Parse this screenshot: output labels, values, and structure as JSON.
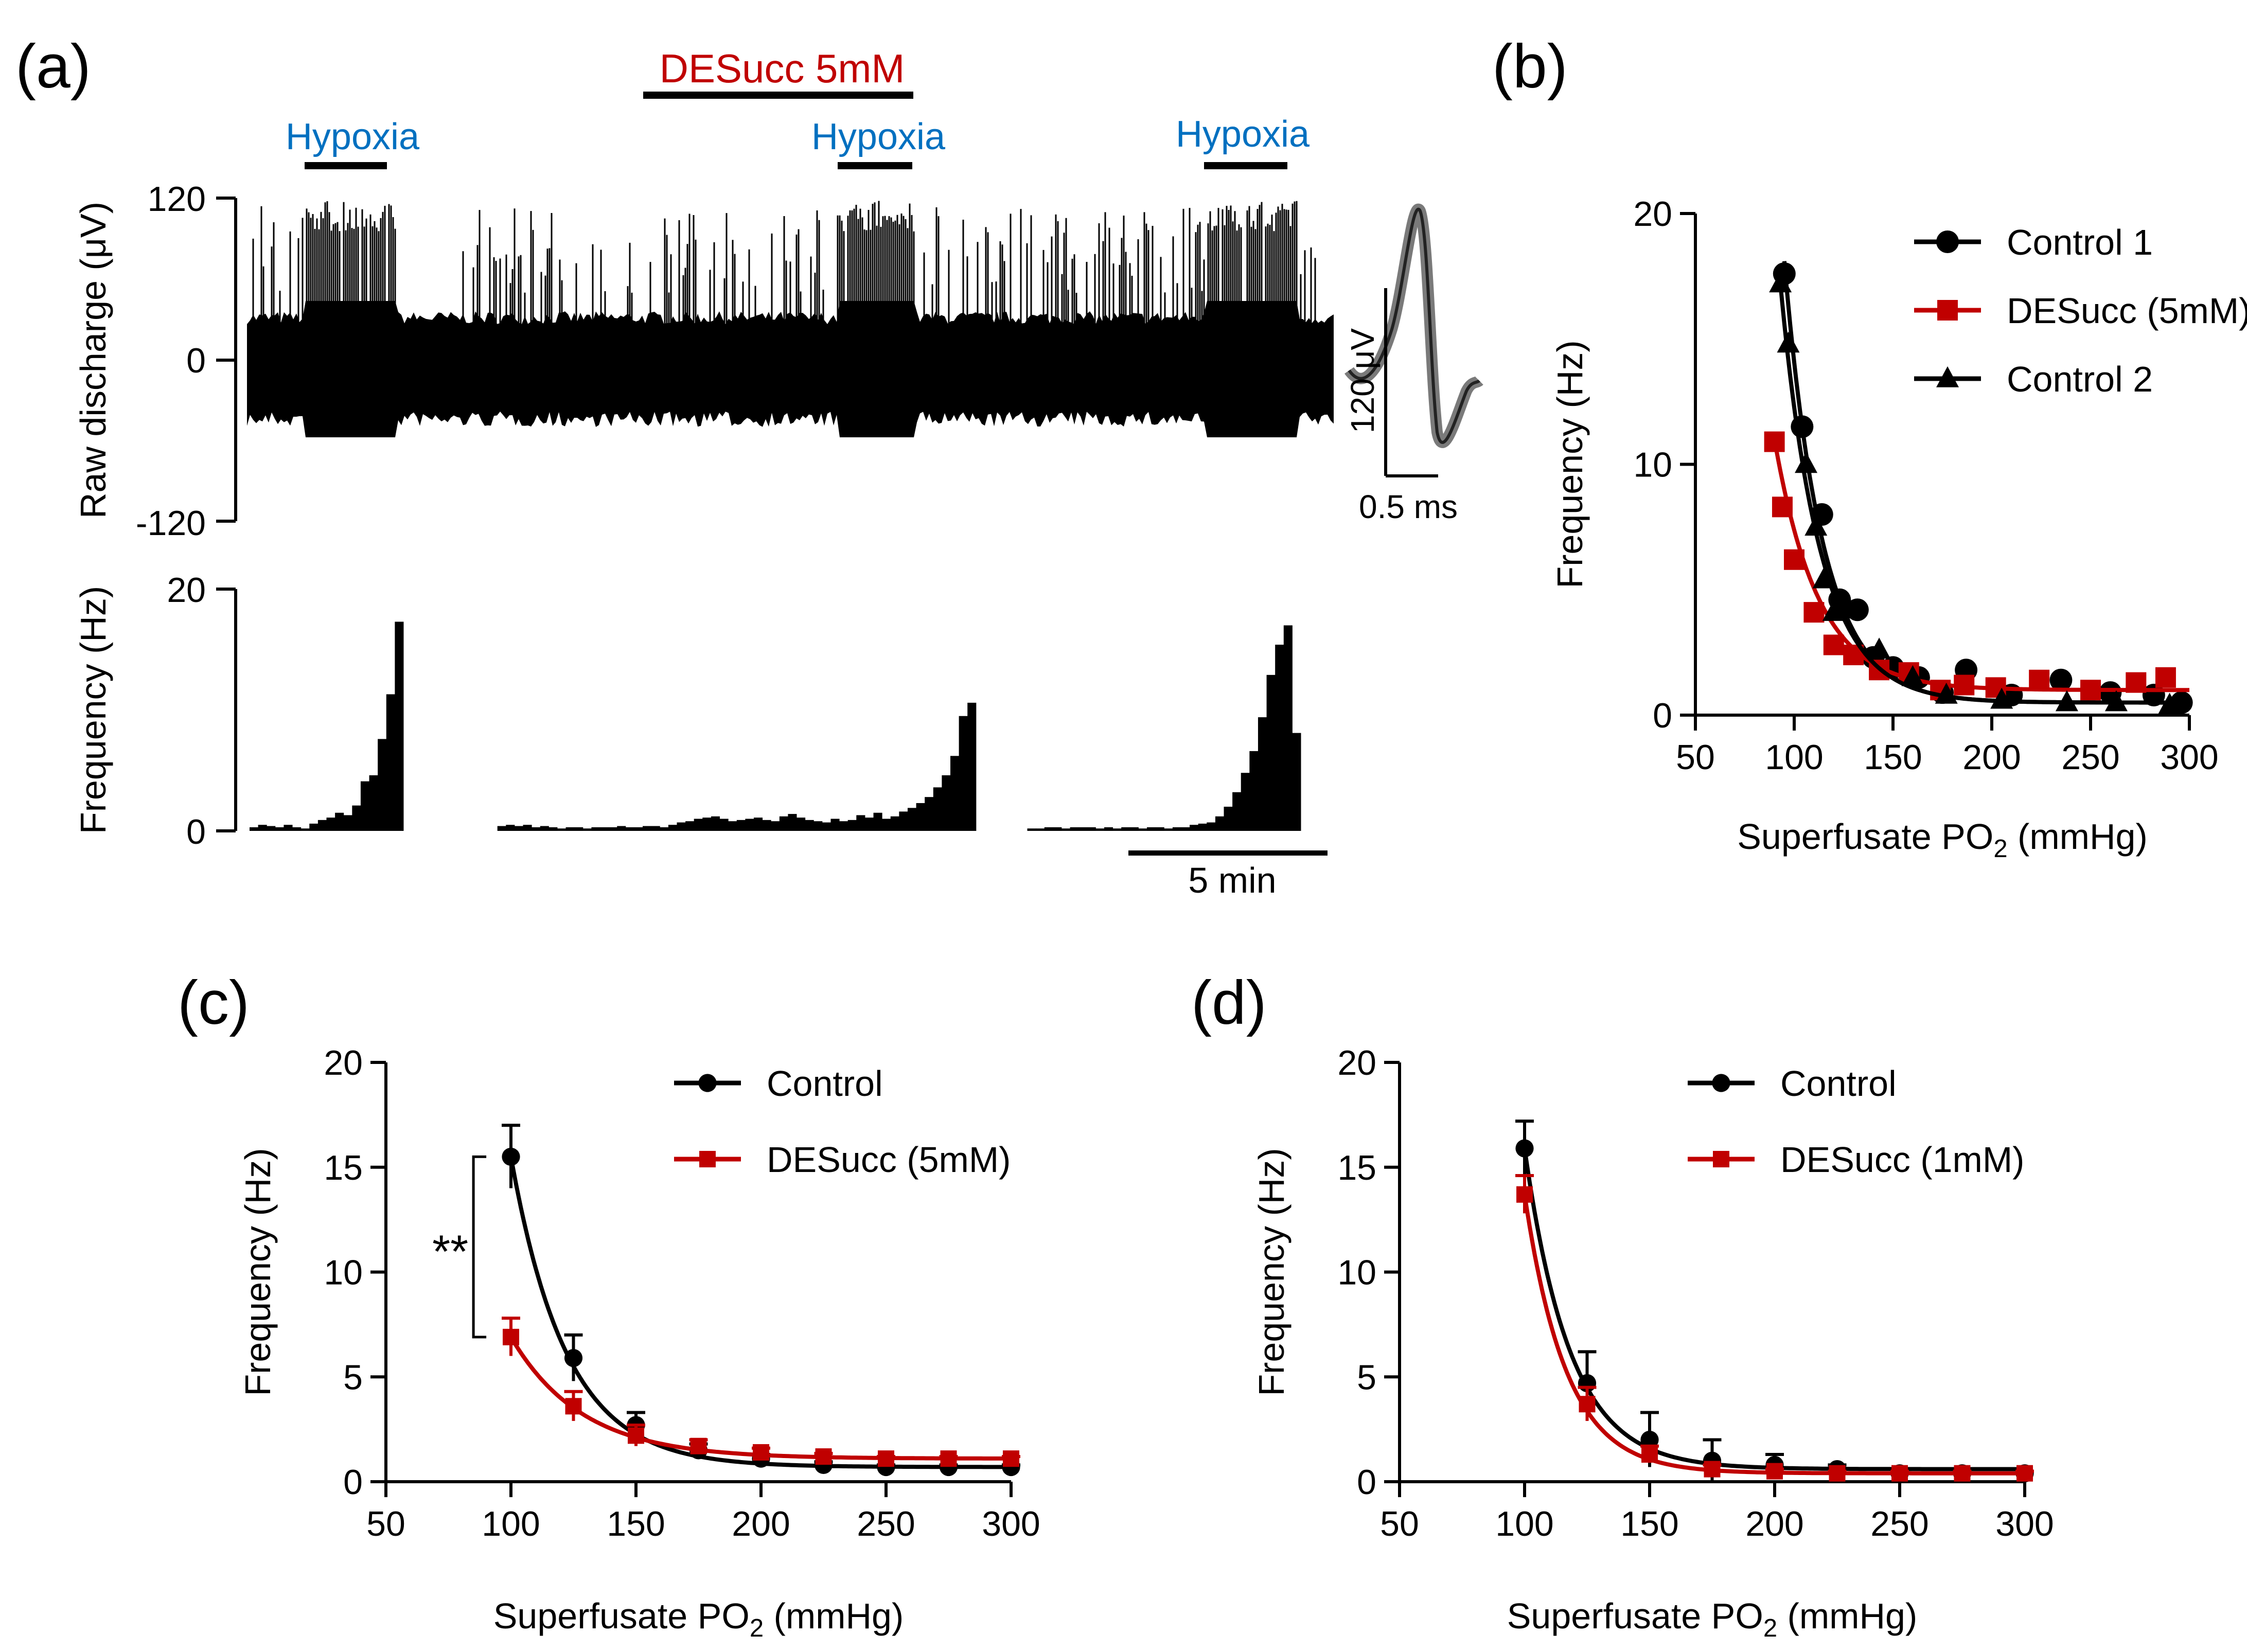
{
  "colors": {
    "black": "#000000",
    "red": "#c00000",
    "blue": "#0070c0"
  },
  "panel_a": {
    "label": "(a)",
    "drug_label": "DESucc 5mM",
    "hypoxia_labels": [
      "Hypoxia",
      "Hypoxia",
      "Hypoxia"
    ],
    "raw_ylabel": "Raw discharge (μV)",
    "raw_ticks": [
      "120",
      "0",
      "-120"
    ],
    "freq_ylabel": "Frequency (Hz)",
    "freq_ticks": [
      "20",
      "0"
    ],
    "time_scale": "5 min",
    "inset_amp": "120 μV",
    "inset_time": "0.5 ms"
  },
  "chart_data": [
    {
      "id": "b",
      "type": "scatter",
      "label": "(b)",
      "xlabel": "Superfusate PO",
      "xlabel_sub": "2",
      "xlabel_unit": " (mmHg)",
      "ylabel": "Frequency (Hz)",
      "xlim": [
        50,
        300
      ],
      "ylim": [
        0,
        20
      ],
      "xticks": [
        50,
        100,
        150,
        200,
        250,
        300
      ],
      "yticks": [
        0,
        10,
        20
      ],
      "series": [
        {
          "name": "Control 1",
          "color": "#000000",
          "marker": "circle",
          "x": [
            95,
            104,
            114,
            123,
            132,
            140,
            150,
            163,
            175,
            187,
            210,
            235,
            260,
            282,
            296
          ],
          "y": [
            17.6,
            11.5,
            8.0,
            4.6,
            4.2,
            2.3,
            1.9,
            1.5,
            0.9,
            1.8,
            0.8,
            1.4,
            0.9,
            0.8,
            0.5
          ],
          "fit": {
            "a": 17.6,
            "k": 0.052,
            "x0": 95,
            "c": 0.5
          }
        },
        {
          "name": "DESucc (5mM)",
          "color": "#c00000",
          "marker": "square",
          "x": [
            90,
            94,
            100,
            110,
            120,
            130,
            143,
            158,
            174,
            186,
            202,
            224,
            250,
            273,
            288
          ],
          "y": [
            10.9,
            8.3,
            6.2,
            4.1,
            2.8,
            2.4,
            1.8,
            1.7,
            1.0,
            1.2,
            1.1,
            1.4,
            1.0,
            1.3,
            1.5
          ],
          "fit": {
            "a": 10.0,
            "k": 0.045,
            "x0": 90,
            "c": 1.0
          }
        },
        {
          "name": "Control 2",
          "color": "#000000",
          "marker": "triangle",
          "x": [
            93,
            97,
            106,
            111,
            115,
            120,
            128,
            143,
            160,
            177,
            205,
            238,
            263,
            290
          ],
          "y": [
            17.2,
            14.8,
            10.0,
            7.5,
            5.4,
            4.1,
            4.2,
            2.6,
            1.5,
            0.8,
            0.6,
            0.5,
            0.5,
            0.4
          ],
          "fit": {
            "a": 16.7,
            "k": 0.05,
            "x0": 93,
            "c": 0.5
          }
        }
      ]
    },
    {
      "id": "c",
      "type": "line",
      "label": "(c)",
      "xlabel": "Superfusate PO",
      "xlabel_sub": "2",
      "xlabel_unit": " (mmHg)",
      "ylabel": "Frequency (Hz)",
      "xlim": [
        50,
        300
      ],
      "ylim": [
        0,
        20
      ],
      "xticks": [
        50,
        100,
        150,
        200,
        250,
        300
      ],
      "yticks": [
        0,
        5,
        10,
        15,
        20
      ],
      "significance": "**",
      "series": [
        {
          "name": "Control",
          "color": "#000000",
          "marker": "circle",
          "x": [
            100,
            125,
            150,
            175,
            200,
            225,
            250,
            275,
            300
          ],
          "y": [
            15.5,
            5.9,
            2.7,
            1.5,
            1.1,
            0.8,
            0.7,
            0.7,
            0.7
          ],
          "err": [
            1.5,
            1.1,
            0.6,
            0.3,
            0.2,
            0.15,
            0.1,
            0.1,
            0.1
          ],
          "fit": {
            "a": 14.8,
            "k": 0.045,
            "x0": 100,
            "c": 0.7
          }
        },
        {
          "name": "DESucc (5mM)",
          "color": "#c00000",
          "marker": "square",
          "x": [
            100,
            125,
            150,
            175,
            200,
            225,
            250,
            275,
            300
          ],
          "y": [
            6.9,
            3.6,
            2.2,
            1.7,
            1.4,
            1.2,
            1.1,
            1.1,
            1.1
          ],
          "err": [
            0.9,
            0.7,
            0.5,
            0.3,
            0.2,
            0.15,
            0.1,
            0.1,
            0.1
          ],
          "fit": {
            "a": 5.8,
            "k": 0.035,
            "x0": 100,
            "c": 1.1
          }
        }
      ]
    },
    {
      "id": "d",
      "type": "line",
      "label": "(d)",
      "xlabel": "Superfusate PO",
      "xlabel_sub": "2",
      "xlabel_unit": " (mmHg)",
      "ylabel": "Frequency (Hz)",
      "xlim": [
        50,
        300
      ],
      "ylim": [
        0,
        20
      ],
      "xticks": [
        50,
        100,
        150,
        200,
        250,
        300
      ],
      "yticks": [
        0,
        5,
        10,
        15,
        20
      ],
      "series": [
        {
          "name": "Control",
          "color": "#000000",
          "marker": "circle",
          "x": [
            100,
            125,
            150,
            175,
            200,
            225,
            250,
            275,
            300
          ],
          "y": [
            15.9,
            4.7,
            2.0,
            1.0,
            0.8,
            0.6,
            0.4,
            0.4,
            0.4
          ],
          "err": [
            1.3,
            1.5,
            1.3,
            1.0,
            0.5,
            0.2,
            0.1,
            0.1,
            0.1
          ],
          "fit": {
            "a": 15.3,
            "k": 0.055,
            "x0": 100,
            "c": 0.6
          }
        },
        {
          "name": "DESucc (1mM)",
          "color": "#c00000",
          "marker": "square",
          "x": [
            100,
            125,
            150,
            175,
            200,
            225,
            250,
            275,
            300
          ],
          "y": [
            13.7,
            3.7,
            1.3,
            0.6,
            0.5,
            0.4,
            0.4,
            0.4,
            0.4
          ],
          "err": [
            0.9,
            0.8,
            0.4,
            0.2,
            0.1,
            0.1,
            0.1,
            0.1,
            0.1
          ],
          "fit": {
            "a": 13.3,
            "k": 0.06,
            "x0": 100,
            "c": 0.4
          }
        }
      ]
    },
    {
      "id": "a-frequency",
      "type": "bar",
      "label": "(a) frequency histogram",
      "ylabel": "Frequency (Hz)",
      "ylim": [
        0,
        20
      ],
      "values": [
        0.3,
        0.5,
        0.4,
        0.3,
        0.5,
        0.3,
        0.2,
        0.6,
        0.9,
        1.1,
        1.5,
        1.3,
        2.1,
        4.1,
        4.6,
        7.6,
        11.3,
        17.3,
        0,
        0,
        0,
        0,
        0,
        0,
        0,
        0,
        0,
        0,
        0,
        0.4,
        0.5,
        0.4,
        0.5,
        0.3,
        0.4,
        0.3,
        0.2,
        0.3,
        0.3,
        0.2,
        0.3,
        0.3,
        0.3,
        0.4,
        0.3,
        0.3,
        0.4,
        0.4,
        0.3,
        0.5,
        0.7,
        0.8,
        1.0,
        1.1,
        1.2,
        1.0,
        0.8,
        0.9,
        1.0,
        1.1,
        0.9,
        0.8,
        1.2,
        1.4,
        1.1,
        0.9,
        0.8,
        0.7,
        1.0,
        0.8,
        0.9,
        1.3,
        1.1,
        1.5,
        1.0,
        1.2,
        1.6,
        1.9,
        2.3,
        2.8,
        3.6,
        4.6,
        6.2,
        9.5,
        10.6,
        0,
        0,
        0,
        0,
        0,
        0,
        0.2,
        0.2,
        0.3,
        0.3,
        0.2,
        0.3,
        0.3,
        0.3,
        0.2,
        0.3,
        0.2,
        0.3,
        0.3,
        0.2,
        0.3,
        0.3,
        0.2,
        0.3,
        0.3,
        0.5,
        0.6,
        0.7,
        1.2,
        2.0,
        3.2,
        4.8,
        6.6,
        9.4,
        12.9,
        15.4,
        17.0,
        8.1
      ]
    }
  ]
}
